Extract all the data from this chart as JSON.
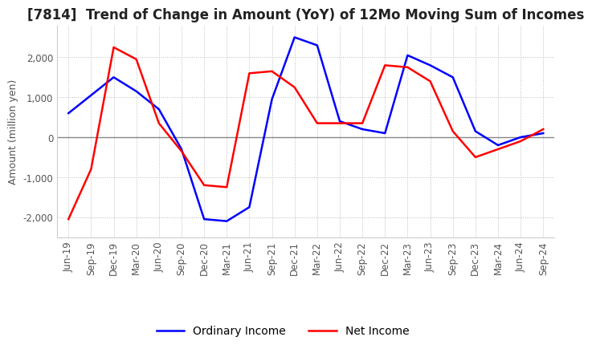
{
  "title": "[7814]  Trend of Change in Amount (YoY) of 12Mo Moving Sum of Incomes",
  "ylabel": "Amount (million yen)",
  "x_labels": [
    "Jun-19",
    "Sep-19",
    "Dec-19",
    "Mar-20",
    "Jun-20",
    "Sep-20",
    "Dec-20",
    "Mar-21",
    "Jun-21",
    "Sep-21",
    "Dec-21",
    "Mar-22",
    "Jun-22",
    "Sep-22",
    "Dec-22",
    "Mar-23",
    "Jun-23",
    "Sep-23",
    "Dec-23",
    "Mar-24",
    "Jun-24",
    "Sep-24"
  ],
  "ordinary_income": [
    600,
    1050,
    1500,
    1150,
    700,
    -300,
    -2050,
    -2100,
    -1750,
    950,
    2500,
    2300,
    400,
    200,
    100,
    2050,
    1800,
    1500,
    150,
    -200,
    0,
    100
  ],
  "net_income": [
    -2050,
    -800,
    2250,
    1950,
    350,
    -350,
    -1200,
    -1250,
    1600,
    1650,
    1250,
    350,
    350,
    350,
    1800,
    1750,
    1400,
    150,
    -500,
    -300,
    -100,
    200
  ],
  "ordinary_income_color": "#0000ff",
  "net_income_color": "#ff0000",
  "ylim": [
    -2500,
    2800
  ],
  "yticks": [
    -2000,
    -1000,
    0,
    1000,
    2000
  ],
  "background_color": "#ffffff",
  "grid_color": "#bbbbbb",
  "title_fontsize": 12,
  "axis_fontsize": 9,
  "tick_fontsize": 8.5
}
